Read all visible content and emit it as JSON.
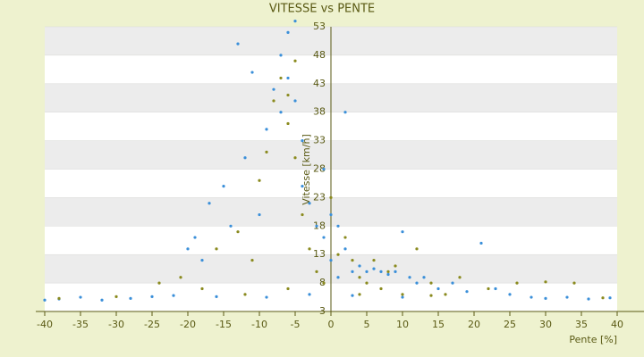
{
  "chart_data": {
    "type": "scatter",
    "title": "VITESSE vs PENTE",
    "x_label": "Pente [%]",
    "y_label": "Vitesse [km/h]",
    "xlim": [
      -40,
      40
    ],
    "ylim": [
      3,
      53
    ],
    "xticks": [
      -40,
      -35,
      -30,
      -25,
      -20,
      -15,
      -10,
      -5,
      0,
      5,
      10,
      15,
      20,
      25,
      30,
      35,
      40
    ],
    "yticks": [
      3,
      8,
      13,
      18,
      23,
      28,
      33,
      38,
      43,
      48,
      53
    ],
    "grid": true,
    "series": [
      {
        "color": "#3a8fd9",
        "x": [
          -40,
          -38,
          -35,
          -32,
          -28,
          -25,
          -22,
          -20,
          -19,
          -18,
          -17,
          -15,
          -14,
          -13,
          -12,
          -11,
          -10,
          -9,
          -8,
          -7,
          -7,
          -6,
          -6,
          -5,
          -5,
          -4,
          -4,
          -3,
          -2,
          -1,
          -1,
          0,
          0,
          1,
          1,
          2,
          2,
          3,
          4,
          5,
          6,
          7,
          8,
          9,
          10,
          11,
          12,
          13,
          15,
          17,
          19,
          21,
          23,
          25,
          28,
          30,
          33,
          36,
          39,
          -9,
          -3,
          3,
          10,
          -16
        ],
        "values": [
          5,
          5.2,
          5.5,
          5,
          5.3,
          5.6,
          5.8,
          14,
          16,
          12,
          22,
          25,
          18,
          50,
          30,
          45,
          20,
          35,
          42,
          48,
          38,
          52,
          44,
          54,
          40,
          33,
          25,
          22,
          18,
          16,
          28,
          12,
          20,
          18,
          9,
          14,
          38,
          10,
          11,
          10,
          10.5,
          10,
          9.5,
          10,
          17,
          9,
          8,
          9,
          7,
          8,
          6.5,
          15,
          7,
          6,
          5.5,
          5.3,
          5.5,
          5.2,
          5.4,
          5.5,
          6,
          5.8,
          5.5,
          5.6
        ]
      },
      {
        "color": "#8a8a1e",
        "x": [
          -38,
          -30,
          -24,
          -21,
          -18,
          -16,
          -13,
          -11,
          -10,
          -9,
          -8,
          -7,
          -6,
          -6,
          -5,
          -5,
          -4,
          -3,
          -2,
          -1,
          0,
          1,
          2,
          3,
          4,
          5,
          6,
          7,
          8,
          9,
          10,
          12,
          14,
          16,
          18,
          22,
          26,
          30,
          34,
          38,
          -12,
          -6,
          4,
          14
        ],
        "values": [
          5.3,
          5.6,
          8,
          9,
          7,
          14,
          17,
          12,
          26,
          31,
          40,
          44,
          36,
          41,
          47,
          30,
          20,
          14,
          10,
          8,
          23,
          13,
          16,
          12,
          9,
          8,
          12,
          7,
          10,
          11,
          6,
          14,
          8,
          6,
          9,
          7,
          8,
          8.2,
          8,
          5.4,
          6,
          7,
          6,
          5.8
        ]
      }
    ]
  }
}
